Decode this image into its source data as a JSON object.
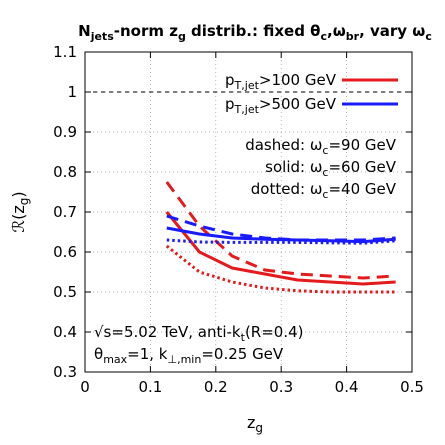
{
  "chart_data": {
    "type": "line",
    "title": {
      "pre": "N",
      "sub": "jets",
      "mid": "-norm z",
      "sub2": "g",
      "post": " distrib.: fixed θ",
      "sub3": "c",
      "post2": ",ω",
      "sub4": "br",
      "post3": ", vary ω",
      "sub5": "c"
    },
    "xlabel": {
      "base": "z",
      "sub": "g"
    },
    "ylabel": {
      "base": "ℛ(z",
      "sub": "g",
      "close": ")"
    },
    "xlim": [
      0,
      0.5
    ],
    "ylim": [
      0.3,
      1.1
    ],
    "xticks": [
      0,
      0.1,
      0.2,
      0.3,
      0.4,
      0.5
    ],
    "xtick_labels": [
      "0",
      "0.1",
      "0.2",
      "0.3",
      "0.4",
      "0.5"
    ],
    "yticks": [
      0.3,
      0.4,
      0.5,
      0.6,
      0.7,
      0.8,
      0.9,
      1.0,
      1.1
    ],
    "ytick_labels": [
      "0.3",
      "0.4",
      "0.5",
      "0.6",
      "0.7",
      "0.8",
      "0.9",
      "1",
      "1.1"
    ],
    "grid": true,
    "reference_line": {
      "y": 1.0,
      "style": "dashed"
    },
    "legend_placement": "top-right",
    "legend": [
      {
        "pre": "p",
        "sub": "T,jet",
        "post": ">100 GeV",
        "color": "#e41a1c"
      },
      {
        "pre": "p",
        "sub": "T,jet",
        "post": ">500 GeV",
        "color": "#1a1aff"
      }
    ],
    "style_notes": [
      "dashed: ω_c=90 GeV",
      "solid: ω_c=60 GeV",
      "dotted: ω_c=40 GeV"
    ],
    "style_notes_rich": [
      {
        "pre": "dashed: ω",
        "sub": "c",
        "post": "=90 GeV"
      },
      {
        "pre": "solid: ω",
        "sub": "c",
        "post": "=60 GeV"
      },
      {
        "pre": "dotted: ω",
        "sub": "c",
        "post": "=40 GeV"
      }
    ],
    "annotations": [
      {
        "pre": "√s=5.02 TeV, anti-k",
        "sub": "t",
        "post": "(R=0.4)"
      },
      {
        "pre": "θ",
        "sub": "max",
        "post": "=1, k",
        "sub2": "⊥,min",
        "post2": "=0.25 GeV"
      }
    ],
    "x": [
      0.125,
      0.175,
      0.225,
      0.275,
      0.325,
      0.375,
      0.425,
      0.475
    ],
    "series": [
      {
        "color": "#e41a1c",
        "dash": "dashed",
        "values": [
          0.775,
          0.665,
          0.59,
          0.555,
          0.545,
          0.54,
          0.535,
          0.54
        ]
      },
      {
        "color": "#e41a1c",
        "dash": "solid",
        "values": [
          0.7,
          0.6,
          0.56,
          0.545,
          0.53,
          0.525,
          0.52,
          0.525
        ]
      },
      {
        "color": "#e41a1c",
        "dash": "dotted",
        "values": [
          0.615,
          0.55,
          0.525,
          0.51,
          0.503,
          0.5,
          0.5,
          0.5
        ]
      },
      {
        "color": "#1a1aff",
        "dash": "dashed",
        "values": [
          0.69,
          0.665,
          0.645,
          0.635,
          0.63,
          0.63,
          0.63,
          0.635
        ]
      },
      {
        "color": "#1a1aff",
        "dash": "solid",
        "values": [
          0.66,
          0.645,
          0.635,
          0.632,
          0.63,
          0.628,
          0.626,
          0.632
        ]
      },
      {
        "color": "#1a1aff",
        "dash": "dotted",
        "values": [
          0.63,
          0.625,
          0.624,
          0.624,
          0.624,
          0.623,
          0.622,
          0.628
        ]
      }
    ]
  }
}
